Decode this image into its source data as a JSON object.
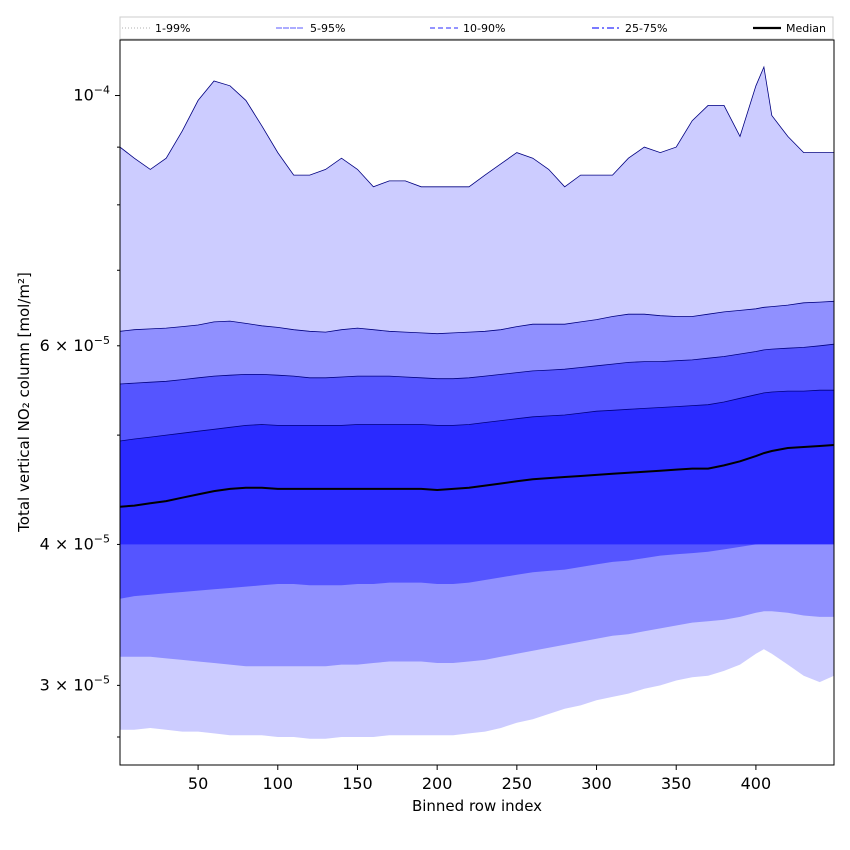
{
  "chart_data": {
    "type": "area",
    "xlabel": "Binned row index",
    "ylabel": "Total vertical NO₂ column [mol/m²]",
    "xlim": [
      1,
      449
    ],
    "ylim": [
      2.55e-05,
      0.000112
    ],
    "yscale": "log",
    "x_ticks": [
      {
        "value": 50,
        "label": "50"
      },
      {
        "value": 100,
        "label": "100"
      },
      {
        "value": 150,
        "label": "150"
      },
      {
        "value": 200,
        "label": "200"
      },
      {
        "value": 250,
        "label": "250"
      },
      {
        "value": 300,
        "label": "300"
      },
      {
        "value": 350,
        "label": "350"
      },
      {
        "value": 400,
        "label": "400"
      }
    ],
    "y_major_ticks": [
      {
        "value": 0.0001,
        "base": "10",
        "exp": "−4"
      }
    ],
    "y_minor_ticks": [
      {
        "value": 3e-05,
        "mant": "3",
        "exp": "−5"
      },
      {
        "value": 4e-05,
        "mant": "4",
        "exp": "−5"
      },
      {
        "value": 6e-05,
        "mant": "6",
        "exp": "−5"
      }
    ],
    "legend_position": "top",
    "x": [
      1,
      10,
      20,
      30,
      40,
      50,
      60,
      70,
      80,
      90,
      100,
      110,
      120,
      130,
      140,
      150,
      160,
      170,
      180,
      190,
      200,
      210,
      220,
      230,
      240,
      250,
      260,
      270,
      280,
      290,
      300,
      310,
      320,
      330,
      340,
      350,
      360,
      370,
      380,
      390,
      400,
      405,
      410,
      420,
      430,
      440,
      449
    ],
    "series": [
      {
        "name": "1-99%",
        "style": "dotted",
        "fill": "#ccccff",
        "line": "#000080",
        "lower": [
          2.74e-05,
          2.74e-05,
          2.75e-05,
          2.74e-05,
          2.73e-05,
          2.73e-05,
          2.72e-05,
          2.71e-05,
          2.71e-05,
          2.71e-05,
          2.7e-05,
          2.7e-05,
          2.69e-05,
          2.69e-05,
          2.7e-05,
          2.7e-05,
          2.7e-05,
          2.71e-05,
          2.71e-05,
          2.71e-05,
          2.71e-05,
          2.71e-05,
          2.72e-05,
          2.73e-05,
          2.75e-05,
          2.78e-05,
          2.8e-05,
          2.83e-05,
          2.86e-05,
          2.88e-05,
          2.91e-05,
          2.93e-05,
          2.95e-05,
          2.98e-05,
          3e-05,
          3.03e-05,
          3.05e-05,
          3.06e-05,
          3.09e-05,
          3.13e-05,
          3.2e-05,
          3.23e-05,
          3.2e-05,
          3.13e-05,
          3.06e-05,
          3.02e-05,
          3.06e-05
        ],
        "upper": [
          9e-05,
          8.8e-05,
          8.6e-05,
          8.8e-05,
          9.3e-05,
          9.9e-05,
          0.000103,
          0.000102,
          9.9e-05,
          9.4e-05,
          8.9e-05,
          8.5e-05,
          8.5e-05,
          8.6e-05,
          8.8e-05,
          8.6e-05,
          8.3e-05,
          8.4e-05,
          8.4e-05,
          8.3e-05,
          8.3e-05,
          8.3e-05,
          8.3e-05,
          8.5e-05,
          8.7e-05,
          8.9e-05,
          8.8e-05,
          8.6e-05,
          8.3e-05,
          8.5e-05,
          8.5e-05,
          8.5e-05,
          8.8e-05,
          9e-05,
          8.9e-05,
          9e-05,
          9.5e-05,
          9.8e-05,
          9.8e-05,
          9.2e-05,
          0.000102,
          0.000106,
          9.6e-05,
          9.2e-05,
          8.9e-05,
          8.9e-05,
          8.9e-05
        ]
      },
      {
        "name": "5-95%",
        "style": "solid-thin",
        "fill": "#9090ff",
        "line": "#000080",
        "lower": [
          3.18e-05,
          3.18e-05,
          3.18e-05,
          3.17e-05,
          3.16e-05,
          3.15e-05,
          3.14e-05,
          3.13e-05,
          3.12e-05,
          3.12e-05,
          3.12e-05,
          3.12e-05,
          3.12e-05,
          3.12e-05,
          3.13e-05,
          3.13e-05,
          3.14e-05,
          3.15e-05,
          3.15e-05,
          3.15e-05,
          3.14e-05,
          3.14e-05,
          3.15e-05,
          3.16e-05,
          3.18e-05,
          3.2e-05,
          3.22e-05,
          3.24e-05,
          3.26e-05,
          3.28e-05,
          3.3e-05,
          3.32e-05,
          3.33e-05,
          3.35e-05,
          3.37e-05,
          3.39e-05,
          3.41e-05,
          3.42e-05,
          3.43e-05,
          3.45e-05,
          3.48e-05,
          3.49e-05,
          3.49e-05,
          3.48e-05,
          3.46e-05,
          3.45e-05,
          3.45e-05
        ],
        "upper": [
          6.18e-05,
          6.2e-05,
          6.21e-05,
          6.22e-05,
          6.24e-05,
          6.26e-05,
          6.3e-05,
          6.31e-05,
          6.28e-05,
          6.25e-05,
          6.23e-05,
          6.2e-05,
          6.18e-05,
          6.17e-05,
          6.2e-05,
          6.22e-05,
          6.2e-05,
          6.18e-05,
          6.17e-05,
          6.16e-05,
          6.15e-05,
          6.16e-05,
          6.17e-05,
          6.18e-05,
          6.2e-05,
          6.24e-05,
          6.27e-05,
          6.27e-05,
          6.27e-05,
          6.3e-05,
          6.33e-05,
          6.37e-05,
          6.4e-05,
          6.4e-05,
          6.38e-05,
          6.37e-05,
          6.37e-05,
          6.4e-05,
          6.43e-05,
          6.45e-05,
          6.47e-05,
          6.49e-05,
          6.5e-05,
          6.52e-05,
          6.55e-05,
          6.56e-05,
          6.57e-05
        ]
      },
      {
        "name": "10-90%",
        "style": "dashed",
        "fill": "#5555ff",
        "line": "#000080",
        "lower": [
          3.58e-05,
          3.6e-05,
          3.61e-05,
          3.62e-05,
          3.63e-05,
          3.64e-05,
          3.65e-05,
          3.66e-05,
          3.67e-05,
          3.68e-05,
          3.69e-05,
          3.69e-05,
          3.68e-05,
          3.68e-05,
          3.68e-05,
          3.69e-05,
          3.69e-05,
          3.7e-05,
          3.7e-05,
          3.7e-05,
          3.69e-05,
          3.69e-05,
          3.7e-05,
          3.72e-05,
          3.74e-05,
          3.76e-05,
          3.78e-05,
          3.79e-05,
          3.8e-05,
          3.82e-05,
          3.84e-05,
          3.86e-05,
          3.87e-05,
          3.89e-05,
          3.91e-05,
          3.92e-05,
          3.93e-05,
          3.94e-05,
          3.96e-05,
          3.98e-05,
          4e-05,
          4.01e-05,
          4.02e-05,
          4.03e-05,
          4.05e-05,
          4.06e-05,
          4.07e-05
        ],
        "upper": [
          5.55e-05,
          5.56e-05,
          5.57e-05,
          5.58e-05,
          5.6e-05,
          5.62e-05,
          5.64e-05,
          5.65e-05,
          5.66e-05,
          5.66e-05,
          5.65e-05,
          5.64e-05,
          5.62e-05,
          5.62e-05,
          5.63e-05,
          5.64e-05,
          5.64e-05,
          5.64e-05,
          5.63e-05,
          5.62e-05,
          5.61e-05,
          5.61e-05,
          5.62e-05,
          5.64e-05,
          5.66e-05,
          5.68e-05,
          5.7e-05,
          5.71e-05,
          5.72e-05,
          5.74e-05,
          5.76e-05,
          5.78e-05,
          5.8e-05,
          5.81e-05,
          5.81e-05,
          5.82e-05,
          5.83e-05,
          5.85e-05,
          5.87e-05,
          5.9e-05,
          5.93e-05,
          5.95e-05,
          5.96e-05,
          5.97e-05,
          5.98e-05,
          6e-05,
          6.02e-05
        ]
      },
      {
        "name": "25-75%",
        "style": "dashdot",
        "fill": "#2a2aff",
        "line": "#000080",
        "lower": [
          4e-05,
          4e-05,
          4e-05,
          4e-05,
          4e-05,
          4e-05,
          4e-05,
          4e-05,
          4e-05,
          4e-05,
          4e-05,
          4e-05,
          4e-05,
          4e-05,
          4e-05,
          4e-05,
          4e-05,
          4e-05,
          4e-05,
          4e-05,
          4e-05,
          4e-05,
          4e-05,
          4e-05,
          4e-05,
          4e-05,
          4e-05,
          4e-05,
          4e-05,
          4e-05,
          4e-05,
          4e-05,
          4e-05,
          4e-05,
          4e-05,
          4e-05,
          4e-05,
          4e-05,
          4e-05,
          4e-05,
          4e-05,
          4e-05,
          4e-05,
          4e-05,
          4e-05,
          4e-05,
          4e-05
        ],
        "upper": [
          4.94e-05,
          4.96e-05,
          4.98e-05,
          5e-05,
          5.02e-05,
          5.04e-05,
          5.06e-05,
          5.08e-05,
          5.1e-05,
          5.11e-05,
          5.1e-05,
          5.1e-05,
          5.1e-05,
          5.1e-05,
          5.1e-05,
          5.11e-05,
          5.11e-05,
          5.11e-05,
          5.11e-05,
          5.11e-05,
          5.1e-05,
          5.1e-05,
          5.11e-05,
          5.13e-05,
          5.15e-05,
          5.17e-05,
          5.19e-05,
          5.2e-05,
          5.21e-05,
          5.23e-05,
          5.25e-05,
          5.26e-05,
          5.27e-05,
          5.28e-05,
          5.29e-05,
          5.3e-05,
          5.31e-05,
          5.32e-05,
          5.35e-05,
          5.39e-05,
          5.43e-05,
          5.45e-05,
          5.46e-05,
          5.47e-05,
          5.47e-05,
          5.48e-05,
          5.48e-05
        ]
      },
      {
        "name": "Median",
        "style": "solid-thick",
        "fill": null,
        "line": "#000000",
        "values": [
          4.32e-05,
          4.33e-05,
          4.35e-05,
          4.37e-05,
          4.4e-05,
          4.43e-05,
          4.46e-05,
          4.48e-05,
          4.49e-05,
          4.49e-05,
          4.48e-05,
          4.48e-05,
          4.48e-05,
          4.48e-05,
          4.48e-05,
          4.48e-05,
          4.48e-05,
          4.48e-05,
          4.48e-05,
          4.48e-05,
          4.47e-05,
          4.48e-05,
          4.49e-05,
          4.51e-05,
          4.53e-05,
          4.55e-05,
          4.57e-05,
          4.58e-05,
          4.59e-05,
          4.6e-05,
          4.61e-05,
          4.62e-05,
          4.63e-05,
          4.64e-05,
          4.65e-05,
          4.66e-05,
          4.67e-05,
          4.67e-05,
          4.7e-05,
          4.74e-05,
          4.79e-05,
          4.82e-05,
          4.84e-05,
          4.87e-05,
          4.88e-05,
          4.89e-05,
          4.9e-05
        ]
      }
    ]
  }
}
